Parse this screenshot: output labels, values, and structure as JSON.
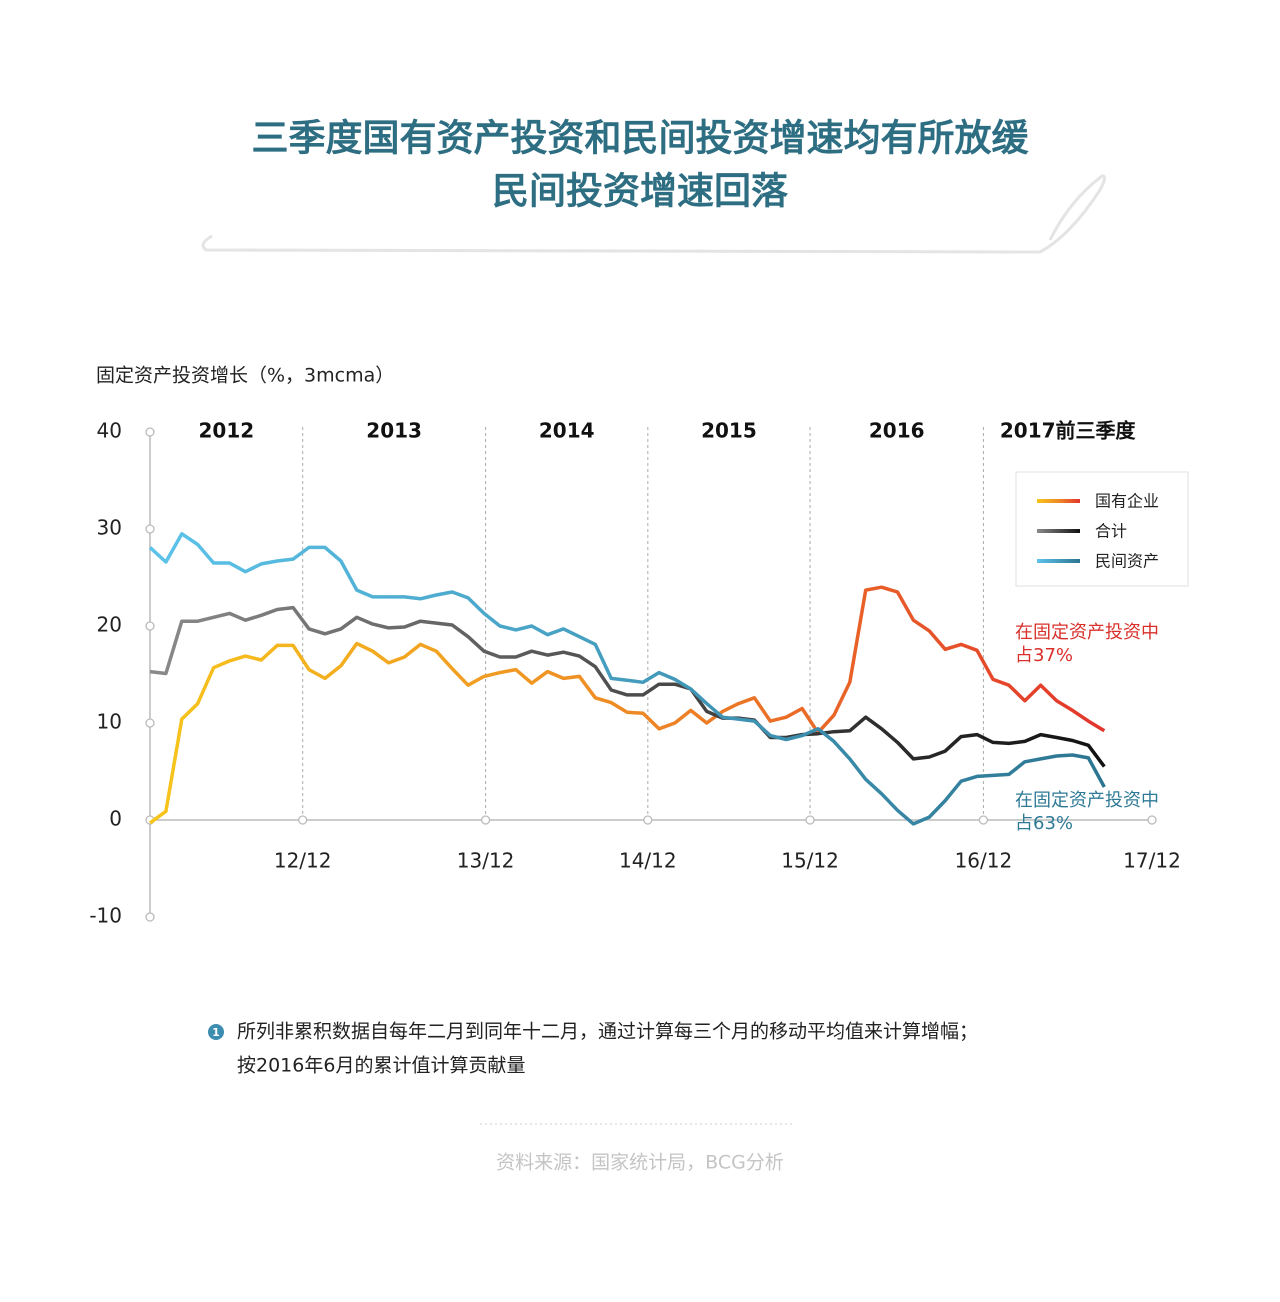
{
  "header": {
    "title_lines": [
      "三季度国有资产投资和民间投资增速均有所放缓",
      "民间投资增速回落"
    ]
  },
  "chart_data": {
    "type": "line",
    "y_label": "固定资产投资增长（%，3mcma）",
    "period_labels": [
      "2012",
      "2013",
      "2014",
      "2015",
      "2016",
      "2017前三季度"
    ],
    "x": [
      0,
      1,
      2,
      3,
      4,
      5,
      6,
      7,
      8,
      9,
      10,
      11,
      12,
      13,
      14,
      15,
      16,
      17,
      18,
      19,
      20,
      21,
      22,
      23,
      24,
      25,
      26,
      27,
      28,
      29,
      30,
      31,
      32,
      33,
      34,
      35,
      36,
      37,
      38,
      39,
      40,
      41,
      42,
      43,
      44,
      45,
      46,
      47,
      48,
      49,
      50,
      51,
      52,
      53,
      54,
      55,
      56,
      57,
      58,
      59,
      60
    ],
    "xlim": [
      0,
      63
    ],
    "xticks": [
      {
        "value": 9.6,
        "label": "12/12"
      },
      {
        "value": 21.1,
        "label": "13/12"
      },
      {
        "value": 31.3,
        "label": "14/12"
      },
      {
        "value": 41.5,
        "label": "15/12"
      },
      {
        "value": 52.4,
        "label": "16/12"
      },
      {
        "value": 63,
        "label": "17/12"
      }
    ],
    "ylim": [
      -10,
      40
    ],
    "yticks": [
      40,
      30,
      20,
      10,
      0,
      -10
    ],
    "series": [
      {
        "name": "国有企业",
        "color": [
          "#f7c51b",
          "#ee8a25",
          "#e2352c"
        ],
        "values": [
          -0.3,
          0.9,
          10.4,
          12.0,
          15.7,
          16.4,
          16.9,
          16.5,
          18.0,
          18.0,
          15.5,
          14.6,
          15.9,
          18.2,
          17.4,
          16.2,
          16.8,
          18.1,
          17.4,
          15.6,
          13.9,
          14.8,
          15.2,
          15.5,
          14.1,
          15.3,
          14.6,
          14.8,
          12.6,
          12.1,
          11.1,
          11.0,
          9.4,
          10.0,
          11.3,
          10.0,
          11.2,
          12.0,
          12.6,
          10.2,
          10.6,
          11.5,
          9.0,
          10.8,
          14.2,
          23.7,
          24.0,
          23.5,
          20.6,
          19.5,
          17.6,
          18.1,
          17.5,
          14.5,
          13.9,
          12.3,
          13.9,
          12.3,
          11.3,
          10.2,
          9.2
        ]
      },
      {
        "name": "合计",
        "color": [
          "#8a8a8a",
          "#111111"
        ],
        "values": [
          15.3,
          15.1,
          20.5,
          20.5,
          20.9,
          21.3,
          20.6,
          21.1,
          21.7,
          21.9,
          19.7,
          19.2,
          19.7,
          20.9,
          20.2,
          19.8,
          19.9,
          20.5,
          20.3,
          20.1,
          18.9,
          17.4,
          16.8,
          16.8,
          17.4,
          17.0,
          17.3,
          16.9,
          15.8,
          13.4,
          12.9,
          12.9,
          14.0,
          14.0,
          13.5,
          11.2,
          10.5,
          10.5,
          10.3,
          8.5,
          8.5,
          8.8,
          8.9,
          9.1,
          9.2,
          10.6,
          9.4,
          8.0,
          6.3,
          6.5,
          7.1,
          8.6,
          8.8,
          8.0,
          7.9,
          8.1,
          8.8,
          8.5,
          8.2,
          7.7,
          5.5
        ]
      },
      {
        "name": "民间资产",
        "color": [
          "#5cc3ea",
          "#2c7591"
        ],
        "values": [
          28.1,
          26.6,
          29.5,
          28.4,
          26.5,
          26.5,
          25.6,
          26.4,
          26.7,
          26.9,
          28.1,
          28.1,
          26.7,
          23.7,
          23.0,
          23.0,
          23.0,
          22.8,
          23.2,
          23.5,
          22.9,
          21.3,
          20.0,
          19.6,
          20.0,
          19.1,
          19.7,
          18.9,
          18.1,
          14.6,
          14.4,
          14.2,
          15.2,
          14.5,
          13.5,
          12.0,
          10.6,
          10.4,
          10.2,
          8.7,
          8.3,
          8.7,
          9.4,
          8.1,
          6.3,
          4.2,
          2.7,
          1.0,
          -0.4,
          0.3,
          2.0,
          4.0,
          4.5,
          4.6,
          4.7,
          6.0,
          6.3,
          6.6,
          6.7,
          6.4,
          3.4
        ]
      }
    ],
    "annotations": [
      {
        "lines": [
          "在固定资产投资中",
          "占37%"
        ],
        "color": "#d9302a"
      },
      {
        "lines": [
          "在固定资产投资中",
          "占63%"
        ],
        "color": "#2e7a96"
      }
    ]
  },
  "footnote": {
    "marker": "1",
    "lines": [
      "所列非累积数据自每年二月到同年十二月，通过计算每三个月的移动平均值来计算增幅；",
      "按2016年6月的累计值计算贡献量"
    ]
  },
  "source": "资料来源：国家统计局，BCG分析"
}
